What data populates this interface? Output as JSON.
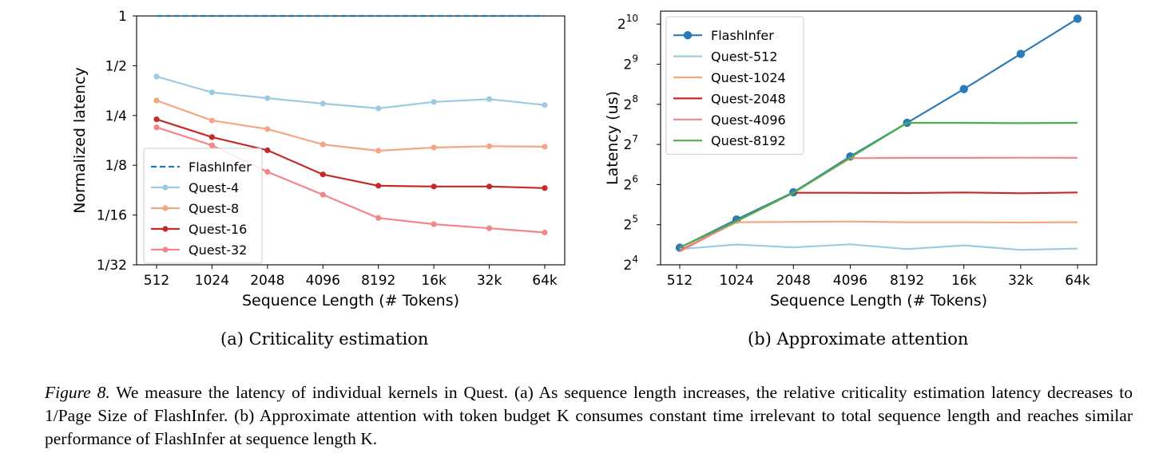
{
  "chart_data": [
    {
      "type": "line",
      "xlabel": "Sequence Length (# Tokens)",
      "ylabel": "Normalized latency",
      "categories": [
        "512",
        "1024",
        "2048",
        "4096",
        "8192",
        "16k",
        "32k",
        "64k"
      ],
      "yscale": "log2",
      "ylim": [
        0.03125,
        1
      ],
      "yticks": [
        0.03125,
        0.0625,
        0.125,
        0.25,
        0.5,
        1
      ],
      "ytick_labels": [
        "1/32",
        "1/16",
        "1/8",
        "1/4",
        "1/2",
        "1"
      ],
      "legend": "lower-left",
      "grid": false,
      "series": [
        {
          "name": "FlashInfer",
          "color": "#1f77b4",
          "dashed": true,
          "marker": false,
          "values": [
            1,
            1,
            1,
            1,
            1,
            1,
            1,
            1
          ]
        },
        {
          "name": "Quest-4",
          "color": "#9ecae1",
          "dashed": false,
          "marker": true,
          "values": [
            0.43,
            0.345,
            0.318,
            0.295,
            0.276,
            0.302,
            0.314,
            0.289
          ]
        },
        {
          "name": "Quest-8",
          "color": "#f4a582",
          "dashed": false,
          "marker": true,
          "values": [
            0.308,
            0.233,
            0.207,
            0.167,
            0.153,
            0.16,
            0.163,
            0.162
          ]
        },
        {
          "name": "Quest-16",
          "color": "#c52a2a",
          "dashed": false,
          "marker": true,
          "values": [
            0.237,
            0.185,
            0.154,
            0.11,
            0.094,
            0.093,
            0.093,
            0.091
          ]
        },
        {
          "name": "Quest-32",
          "color": "#f4868a",
          "dashed": false,
          "marker": true,
          "values": [
            0.212,
            0.165,
            0.114,
            0.083,
            0.06,
            0.055,
            0.052,
            0.049
          ]
        }
      ],
      "caption": "(a) Criticality estimation"
    },
    {
      "type": "line",
      "xlabel": "Sequence Length (# Tokens)",
      "ylabel": "Latency (us)",
      "categories": [
        "512",
        "1024",
        "2048",
        "4096",
        "8192",
        "16k",
        "32k",
        "64k"
      ],
      "yscale": "log2",
      "ylim": [
        16,
        1280
      ],
      "yticks": [
        16,
        32,
        64,
        128,
        256,
        512,
        1024
      ],
      "ytick_exponents": [
        "4",
        "5",
        "6",
        "7",
        "8",
        "9",
        "10"
      ],
      "ytick_base": "2",
      "legend": "upper-left",
      "grid": false,
      "series": [
        {
          "name": "FlashInfer",
          "color": "#2b7bba",
          "marker": true,
          "values": [
            21.5,
            35,
            56,
            104,
            186,
            333,
            612,
            1124
          ]
        },
        {
          "name": "Quest-512",
          "color": "#9ecae1",
          "marker": false,
          "values": [
            21,
            22.7,
            21.6,
            22.8,
            21,
            22.4,
            20.7,
            21.2
          ]
        },
        {
          "name": "Quest-1024",
          "color": "#f4a582",
          "marker": false,
          "values": [
            20.5,
            33.4,
            33.6,
            33.8,
            33.4,
            33.4,
            33.2,
            33.4
          ]
        },
        {
          "name": "Quest-2048",
          "color": "#c52a2a",
          "marker": false,
          "values": [
            20.3,
            34,
            55.5,
            55.5,
            55.3,
            55.8,
            55.1,
            55.8
          ]
        },
        {
          "name": "Quest-4096",
          "color": "#f4868a",
          "marker": false,
          "values": [
            20.1,
            34,
            55.5,
            101,
            101.5,
            101.5,
            101.8,
            101.5
          ]
        },
        {
          "name": "Quest-8192",
          "color": "#4daf4a",
          "marker": false,
          "values": [
            21.6,
            34,
            55.5,
            102,
            186,
            186,
            185,
            186
          ]
        }
      ],
      "caption": "(b) Approximate attention"
    }
  ],
  "caption": {
    "label": "Figure 8.",
    "text": " We measure the latency of individual kernels in Quest. (a) As sequence length increases, the relative criticality estimation latency decreases to 1/Page Size of FlashInfer. (b) Approximate attention with token budget K consumes constant time irrelevant to total sequence length and reaches similar performance of FlashInfer at sequence length K."
  }
}
